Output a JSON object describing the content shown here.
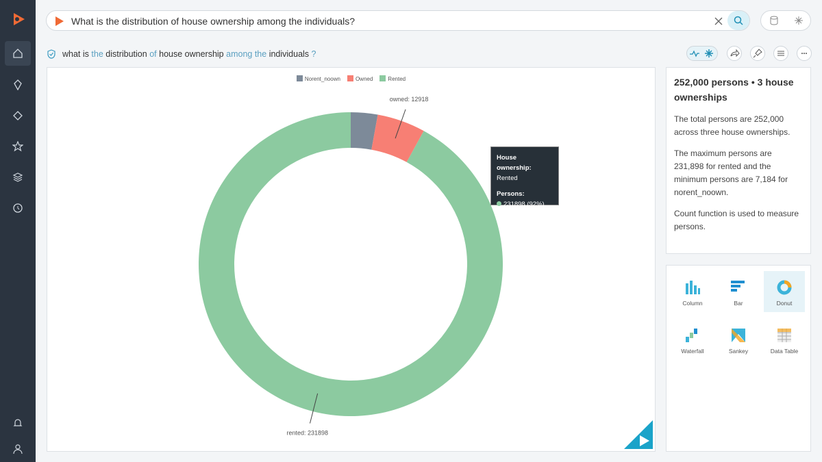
{
  "search": {
    "query": "What is the distribution of house ownership among the individuals?"
  },
  "query_tokens": [
    "what is",
    "the",
    "distribution",
    "of",
    "house ownership",
    "among the",
    "individuals",
    "?"
  ],
  "chart_data": {
    "type": "donut",
    "categories": [
      "Norent_noown",
      "Owned",
      "Rented"
    ],
    "values": [
      7184,
      12918,
      231898
    ],
    "value_labels": [
      null,
      "owned: 12918",
      "rented: 231898"
    ],
    "colors": [
      "#7d8a99",
      "#f77f74",
      "#8ccaa0"
    ],
    "legend": "top"
  },
  "tooltip": {
    "title": "House ownership:",
    "category": "Rented",
    "measure": "Persons:",
    "value": "231898 (92%)"
  },
  "summary": {
    "title": "252,000 persons • 3 house ownerships",
    "paragraphs": [
      "The total persons are 252,000 across three house ownerships.",
      "The maximum persons are 231,898 for rented and the minimum persons are 7,184 for norent_noown.",
      "Count function is used to measure persons."
    ]
  },
  "chart_types": [
    "Column",
    "Bar",
    "Donut",
    "Waterfall",
    "Sankey",
    "Data Table"
  ]
}
